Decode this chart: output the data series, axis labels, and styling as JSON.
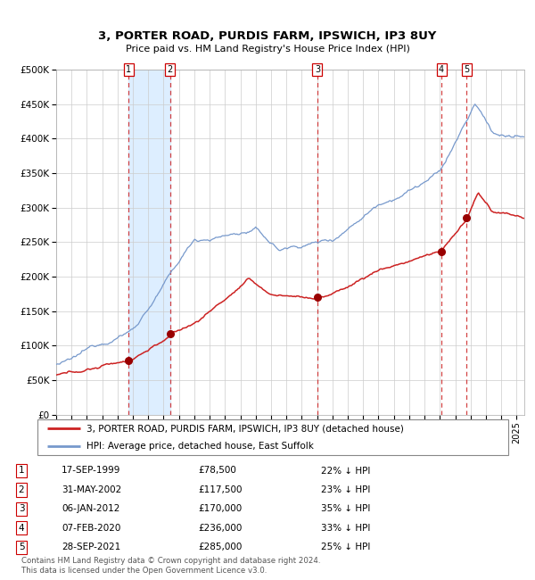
{
  "title": "3, PORTER ROAD, PURDIS FARM, IPSWICH, IP3 8UY",
  "subtitle": "Price paid vs. HM Land Registry's House Price Index (HPI)",
  "hpi_color": "#7799cc",
  "price_color": "#cc2222",
  "bg_color": "#ffffff",
  "span_color": "#ddeeff",
  "ylim": [
    0,
    500000
  ],
  "yticks": [
    0,
    50000,
    100000,
    150000,
    200000,
    250000,
    300000,
    350000,
    400000,
    450000,
    500000
  ],
  "ytick_labels": [
    "£0",
    "£50K",
    "£100K",
    "£150K",
    "£200K",
    "£250K",
    "£300K",
    "£350K",
    "£400K",
    "£450K",
    "£500K"
  ],
  "transactions": [
    {
      "label": "1",
      "date_str": "17-SEP-1999",
      "year": 1999.71,
      "price": 78500,
      "pct": "22%"
    },
    {
      "label": "2",
      "date_str": "31-MAY-2002",
      "year": 2002.41,
      "price": 117500,
      "pct": "23%"
    },
    {
      "label": "3",
      "date_str": "06-JAN-2012",
      "year": 2012.02,
      "price": 170000,
      "pct": "35%"
    },
    {
      "label": "4",
      "date_str": "07-FEB-2020",
      "year": 2020.1,
      "price": 236000,
      "pct": "33%"
    },
    {
      "label": "5",
      "date_str": "28-SEP-2021",
      "year": 2021.74,
      "price": 285000,
      "pct": "25%"
    }
  ],
  "legend_label1": "3, PORTER ROAD, PURDIS FARM, IPSWICH, IP3 8UY (detached house)",
  "legend_label2": "HPI: Average price, detached house, East Suffolk",
  "footer": "Contains HM Land Registry data © Crown copyright and database right 2024.\nThis data is licensed under the Open Government Licence v3.0.",
  "xlim_start": 1995,
  "xlim_end": 2025.5
}
